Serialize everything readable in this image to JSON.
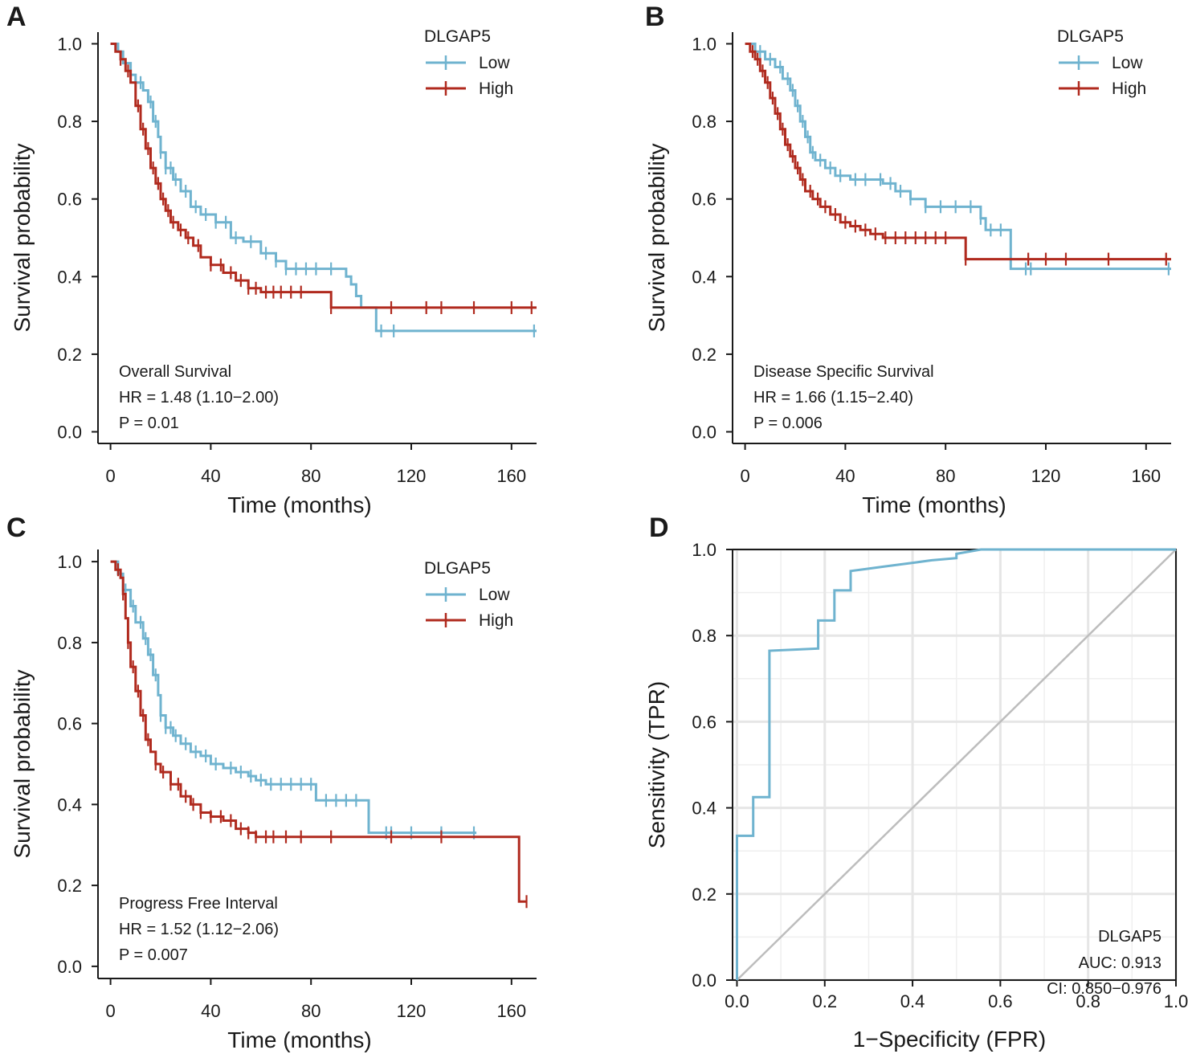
{
  "figure": {
    "colors": {
      "low": "#6fb3cf",
      "high": "#b02a1e",
      "roc": "#6fb3cf",
      "diagonal": "#bdbdbd",
      "grid": "#e6e6e6",
      "axis": "#1a1a1a"
    }
  },
  "chart_data": [
    {
      "panel": "A",
      "type": "line",
      "subtype": "kaplan-meier",
      "xlabel": "Time (months)",
      "ylabel": "Survival probability",
      "xlim": [
        -5,
        170
      ],
      "ylim": [
        -0.03,
        1.03
      ],
      "xticks": [
        0,
        40,
        80,
        120,
        160
      ],
      "xtick_labels": [
        "0",
        "40",
        "80",
        "120",
        "160"
      ],
      "yticks": [
        0,
        0.2,
        0.4,
        0.6,
        0.8,
        1.0
      ],
      "ytick_labels": [
        "0.0",
        "0.2",
        "0.4",
        "0.6",
        "0.8",
        "1.0"
      ],
      "legend_title": "DLGAP5",
      "legend_position": "top-right",
      "annotation": [
        "Overall Survival",
        "HR = 1.48 (1.10−2.00)",
        "P = 0.01"
      ],
      "series": [
        {
          "name": "Low",
          "color": "#6fb3cf",
          "x": [
            0,
            3,
            5,
            8,
            10,
            13,
            15,
            17,
            19,
            20,
            22,
            25,
            28,
            32,
            36,
            42,
            48,
            53,
            60,
            66,
            70,
            80,
            90,
            94,
            96,
            98,
            100,
            106,
            170
          ],
          "y": [
            1.0,
            0.98,
            0.95,
            0.92,
            0.9,
            0.88,
            0.85,
            0.8,
            0.76,
            0.72,
            0.68,
            0.65,
            0.62,
            0.58,
            0.56,
            0.54,
            0.5,
            0.49,
            0.46,
            0.44,
            0.42,
            0.42,
            0.42,
            0.4,
            0.38,
            0.35,
            0.32,
            0.26,
            0.26
          ],
          "censor_x": [
            8,
            12,
            16,
            18,
            20,
            22,
            24,
            26,
            30,
            34,
            38,
            42,
            46,
            50,
            56,
            62,
            66,
            70,
            74,
            78,
            82,
            88,
            108,
            113,
            169
          ]
        },
        {
          "name": "High",
          "color": "#b02a1e",
          "x": [
            0,
            2,
            4,
            6,
            8,
            10,
            12,
            14,
            16,
            18,
            20,
            22,
            24,
            27,
            30,
            33,
            36,
            40,
            45,
            50,
            55,
            60,
            65,
            70,
            80,
            88,
            170
          ],
          "y": [
            1.0,
            0.98,
            0.96,
            0.93,
            0.9,
            0.84,
            0.78,
            0.73,
            0.68,
            0.64,
            0.6,
            0.57,
            0.54,
            0.52,
            0.5,
            0.48,
            0.45,
            0.43,
            0.41,
            0.39,
            0.37,
            0.36,
            0.36,
            0.36,
            0.36,
            0.32,
            0.32
          ],
          "censor_x": [
            4,
            7,
            11,
            13,
            15,
            17,
            19,
            21,
            23,
            25,
            28,
            31,
            35,
            40,
            44,
            48,
            52,
            55,
            58,
            62,
            65,
            68,
            72,
            76,
            88,
            112,
            126,
            132,
            145,
            160,
            168
          ]
        }
      ]
    },
    {
      "panel": "B",
      "type": "line",
      "subtype": "kaplan-meier",
      "xlabel": "Time (months)",
      "ylabel": "Survival probability",
      "xlim": [
        -5,
        170
      ],
      "ylim": [
        -0.03,
        1.03
      ],
      "xticks": [
        0,
        40,
        80,
        120,
        160
      ],
      "xtick_labels": [
        "0",
        "40",
        "80",
        "120",
        "160"
      ],
      "yticks": [
        0,
        0.2,
        0.4,
        0.6,
        0.8,
        1.0
      ],
      "ytick_labels": [
        "0.0",
        "0.2",
        "0.4",
        "0.6",
        "0.8",
        "1.0"
      ],
      "legend_title": "DLGAP5",
      "legend_position": "top-right",
      "annotation": [
        "Disease Specific Survival",
        "HR = 1.66 (1.15−2.40)",
        "P = 0.006"
      ],
      "series": [
        {
          "name": "Low",
          "color": "#6fb3cf",
          "x": [
            0,
            4,
            8,
            12,
            15,
            18,
            20,
            22,
            24,
            26,
            28,
            32,
            36,
            42,
            50,
            55,
            60,
            66,
            72,
            80,
            88,
            94,
            96,
            106,
            170
          ],
          "y": [
            1.0,
            0.98,
            0.96,
            0.94,
            0.91,
            0.88,
            0.84,
            0.8,
            0.76,
            0.72,
            0.7,
            0.68,
            0.66,
            0.65,
            0.65,
            0.64,
            0.62,
            0.6,
            0.58,
            0.58,
            0.58,
            0.55,
            0.52,
            0.42,
            0.42
          ],
          "censor_x": [
            6,
            10,
            14,
            17,
            19,
            21,
            23,
            25,
            27,
            30,
            34,
            38,
            44,
            48,
            54,
            58,
            62,
            66,
            72,
            78,
            84,
            90,
            94,
            98,
            102,
            112,
            114,
            169
          ]
        },
        {
          "name": "High",
          "color": "#b02a1e",
          "x": [
            0,
            2,
            4,
            6,
            8,
            10,
            12,
            14,
            16,
            18,
            20,
            22,
            24,
            27,
            30,
            34,
            38,
            42,
            46,
            50,
            55,
            60,
            70,
            80,
            88,
            170
          ],
          "y": [
            1.0,
            0.98,
            0.96,
            0.93,
            0.9,
            0.86,
            0.82,
            0.78,
            0.74,
            0.71,
            0.68,
            0.65,
            0.62,
            0.6,
            0.58,
            0.56,
            0.54,
            0.53,
            0.52,
            0.51,
            0.5,
            0.5,
            0.5,
            0.5,
            0.445,
            0.445
          ],
          "censor_x": [
            3,
            5,
            7,
            9,
            11,
            13,
            15,
            17,
            19,
            21,
            23,
            26,
            29,
            32,
            36,
            40,
            44,
            48,
            52,
            56,
            60,
            64,
            68,
            72,
            76,
            80,
            88,
            113,
            120,
            128,
            145,
            168
          ]
        }
      ]
    },
    {
      "panel": "C",
      "type": "line",
      "subtype": "kaplan-meier",
      "xlabel": "Time (months)",
      "ylabel": "Survival probability",
      "xlim": [
        -5,
        170
      ],
      "ylim": [
        -0.03,
        1.03
      ],
      "xticks": [
        0,
        40,
        80,
        120,
        160
      ],
      "xtick_labels": [
        "0",
        "40",
        "80",
        "120",
        "160"
      ],
      "yticks": [
        0,
        0.2,
        0.4,
        0.6,
        0.8,
        1.0
      ],
      "ytick_labels": [
        "0.0",
        "0.2",
        "0.4",
        "0.6",
        "0.8",
        "1.0"
      ],
      "legend_title": "DLGAP5",
      "legend_position": "top-right",
      "annotation": [
        "Progress Free Interval",
        "HR = 1.52 (1.12−2.06)",
        "P = 0.007"
      ],
      "series": [
        {
          "name": "Low",
          "color": "#6fb3cf",
          "x": [
            0,
            3,
            5,
            8,
            10,
            13,
            15,
            17,
            19,
            20,
            22,
            25,
            28,
            32,
            36,
            40,
            45,
            50,
            55,
            58,
            62,
            70,
            80,
            82,
            90,
            95,
            100,
            103,
            146
          ],
          "y": [
            1.0,
            0.97,
            0.93,
            0.89,
            0.85,
            0.81,
            0.77,
            0.72,
            0.67,
            0.62,
            0.59,
            0.57,
            0.55,
            0.53,
            0.52,
            0.5,
            0.49,
            0.48,
            0.47,
            0.46,
            0.45,
            0.45,
            0.45,
            0.41,
            0.41,
            0.41,
            0.41,
            0.33,
            0.33
          ],
          "censor_x": [
            6,
            9,
            12,
            14,
            16,
            18,
            20,
            22,
            24,
            26,
            30,
            34,
            38,
            42,
            48,
            52,
            56,
            60,
            64,
            68,
            72,
            76,
            80,
            86,
            90,
            94,
            98,
            110,
            112,
            120,
            132,
            145
          ]
        },
        {
          "name": "High",
          "color": "#b02a1e",
          "x": [
            0,
            2,
            4,
            5,
            6,
            7,
            8,
            10,
            12,
            14,
            16,
            18,
            20,
            24,
            28,
            32,
            36,
            40,
            45,
            50,
            55,
            58,
            60,
            100,
            120,
            163,
            166
          ],
          "y": [
            1.0,
            0.98,
            0.96,
            0.92,
            0.86,
            0.8,
            0.74,
            0.68,
            0.62,
            0.56,
            0.53,
            0.5,
            0.48,
            0.45,
            0.42,
            0.4,
            0.38,
            0.37,
            0.36,
            0.34,
            0.33,
            0.32,
            0.32,
            0.32,
            0.32,
            0.16,
            0.16
          ],
          "censor_x": [
            3,
            5,
            7,
            9,
            11,
            13,
            15,
            18,
            21,
            24,
            27,
            30,
            33,
            36,
            40,
            44,
            48,
            52,
            55,
            58,
            62,
            65,
            70,
            76,
            88,
            112,
            132,
            166
          ]
        }
      ]
    },
    {
      "panel": "D",
      "type": "line",
      "subtype": "roc",
      "xlabel": "1−Specificity (FPR)",
      "ylabel": "Sensitivity (TPR)",
      "xlim": [
        -0.01,
        1.0
      ],
      "ylim": [
        0,
        1.0
      ],
      "xticks": [
        0,
        0.2,
        0.4,
        0.6,
        0.8,
        1.0
      ],
      "xtick_labels": [
        "0.0",
        "0.2",
        "0.4",
        "0.6",
        "0.8",
        "1.0"
      ],
      "yticks": [
        0,
        0.2,
        0.4,
        0.6,
        0.8,
        1.0
      ],
      "ytick_labels": [
        "0.0",
        "0.2",
        "0.4",
        "0.6",
        "0.8",
        "1.0"
      ],
      "grid": true,
      "annotation": [
        "DLGAP5",
        "AUC: 0.913",
        "CI: 0.850−0.976"
      ],
      "series": [
        {
          "name": "DLGAP5",
          "color": "#6fb3cf",
          "x": [
            0.0,
            0.0,
            0.0,
            0.0,
            0.037,
            0.037,
            0.074,
            0.074,
            0.185,
            0.185,
            0.222,
            0.222,
            0.259,
            0.259,
            0.296,
            0.333,
            0.37,
            0.407,
            0.444,
            0.5,
            0.5,
            0.556,
            1.0
          ],
          "y": [
            0.0,
            0.23,
            0.335,
            0.335,
            0.335,
            0.425,
            0.425,
            0.765,
            0.77,
            0.835,
            0.835,
            0.905,
            0.905,
            0.95,
            0.955,
            0.96,
            0.965,
            0.97,
            0.975,
            0.98,
            0.99,
            1.0,
            1.0
          ]
        },
        {
          "name": "reference",
          "color": "#bdbdbd",
          "x": [
            0,
            1
          ],
          "y": [
            0,
            1
          ]
        }
      ]
    }
  ]
}
